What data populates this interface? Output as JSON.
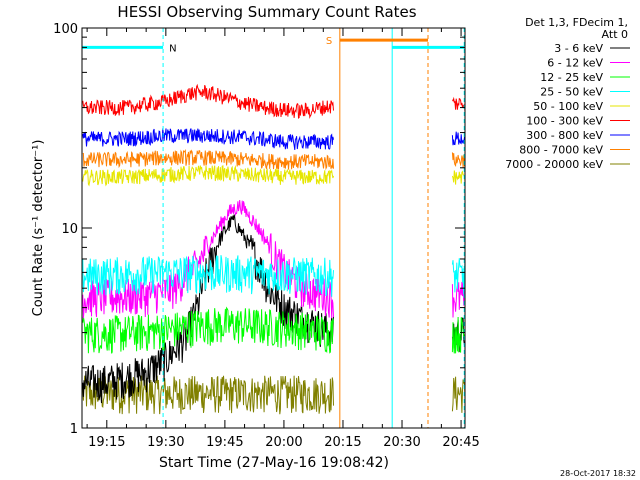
{
  "chart_data": {
    "type": "line",
    "title": "HESSI Observing Summary Count Rates",
    "xlabel": "Start Time (27-May-16 19:08:42)",
    "ylabel": "Count Rate (s⁻¹ detector⁻¹)",
    "ylim": [
      1,
      100
    ],
    "yscale": "log",
    "xlim_minutes": [
      1148.7,
      1246.0
    ],
    "x_ticks": [
      {
        "label": "19:15",
        "minute": 1155
      },
      {
        "label": "19:30",
        "minute": 1170
      },
      {
        "label": "19:45",
        "minute": 1185
      },
      {
        "label": "20:00",
        "minute": 1200
      },
      {
        "label": "20:15",
        "minute": 1215
      },
      {
        "label": "20:30",
        "minute": 1230
      },
      {
        "label": "20:45",
        "minute": 1245
      }
    ],
    "y_ticks": [
      {
        "label": "1",
        "value": 1
      },
      {
        "label": "10",
        "value": 10
      },
      {
        "label": "100",
        "value": 100
      }
    ],
    "legend": {
      "placement": "right",
      "header": [
        "Det 1,3, FDecim 1,",
        "Att 0"
      ],
      "entries": [
        {
          "name": "3 - 6 keV",
          "color": "#000000"
        },
        {
          "name": "6 - 12 keV",
          "color": "#ff00ff"
        },
        {
          "name": "12 - 25 keV",
          "color": "#00ff00"
        },
        {
          "name": "25 - 50 keV",
          "color": "#00ffff"
        },
        {
          "name": "50 - 100 keV",
          "color": "#e6e600"
        },
        {
          "name": "100 - 300 keV",
          "color": "#ff0000"
        },
        {
          "name": "300 - 800 keV",
          "color": "#0000ff"
        },
        {
          "name": "800 - 7000 keV",
          "color": "#ff8000"
        },
        {
          "name": "7000 - 20000 keV",
          "color": "#808000"
        }
      ]
    },
    "series": [
      {
        "name": "7000 - 20000 keV",
        "color": "#808000",
        "segments": [
          {
            "x": [
              1148.9,
              1160,
              1170,
              1180,
              1190,
              1200,
              1210,
              1212.6
            ],
            "y": [
              1.5,
              1.5,
              1.5,
              1.5,
              1.5,
              1.5,
              1.5,
              1.5
            ]
          },
          {
            "x": [
              1242.8,
              1246
            ],
            "y": [
              1.5,
              1.5
            ]
          }
        ]
      },
      {
        "name": "3 - 6 keV",
        "color": "#000000",
        "segments": [
          {
            "x": [
              1148.9,
              1155,
              1165,
              1170,
              1175,
              1178,
              1181,
              1184,
              1187,
              1190,
              1193,
              1196,
              1200,
              1205,
              1212.6
            ],
            "y": [
              1.7,
              1.7,
              1.9,
              2.2,
              2.8,
              4,
              6.5,
              9,
              11,
              9,
              7,
              5,
              4,
              3.5,
              3
            ]
          },
          {
            "x": [
              1242.8,
              1246
            ],
            "y": [
              3,
              3
            ]
          }
        ]
      },
      {
        "name": "12 - 25 keV",
        "color": "#00ff00",
        "segments": [
          {
            "x": [
              1148.9,
              1160,
              1170,
              1180,
              1190,
              1200,
              1212.6
            ],
            "y": [
              3,
              3,
              3.1,
              3.3,
              3.3,
              3.2,
              3
            ]
          },
          {
            "x": [
              1242.8,
              1246
            ],
            "y": [
              3,
              3
            ]
          }
        ]
      },
      {
        "name": "6 - 12 keV",
        "color": "#ff00ff",
        "segments": [
          {
            "x": [
              1148.9,
              1165,
              1172,
              1178,
              1182,
              1186,
              1189,
              1192,
              1195,
              1198,
              1201,
              1205,
              1212.6
            ],
            "y": [
              4.5,
              4.6,
              5,
              6.5,
              9,
              12,
              13,
              11,
              9,
              7,
              5.8,
              5,
              4.5
            ]
          },
          {
            "x": [
              1242.8,
              1246
            ],
            "y": [
              4.5,
              4.5
            ]
          }
        ]
      },
      {
        "name": "25 - 50 keV",
        "color": "#00ffff",
        "segments": [
          {
            "x": [
              1148.9,
              1160,
              1170,
              1180,
              1190,
              1200,
              1212.6
            ],
            "y": [
              5.8,
              5.9,
              6,
              6,
              6,
              5.9,
              5.8
            ]
          },
          {
            "x": [
              1242.8,
              1246
            ],
            "y": [
              5.8,
              5.8
            ]
          }
        ]
      },
      {
        "name": "50 - 100 keV",
        "color": "#e6e600",
        "segments": [
          {
            "x": [
              1148.9,
              1160,
              1170,
              1180,
              1190,
              1200,
              1212.6
            ],
            "y": [
              18,
              18,
              18.5,
              19,
              18.5,
              18,
              18
            ]
          },
          {
            "x": [
              1242.8,
              1246
            ],
            "y": [
              18,
              18
            ]
          }
        ]
      },
      {
        "name": "800 - 7000 keV",
        "color": "#ff8000",
        "segments": [
          {
            "x": [
              1148.9,
              1160,
              1170,
              1180,
              1190,
              1200,
              1212.6
            ],
            "y": [
              22,
              22,
              22.5,
              22.5,
              22,
              21.5,
              21.5
            ]
          },
          {
            "x": [
              1242.8,
              1246
            ],
            "y": [
              22,
              22
            ]
          }
        ]
      },
      {
        "name": "300 - 800 keV",
        "color": "#0000ff",
        "segments": [
          {
            "x": [
              1148.9,
              1160,
              1170,
              1180,
              1190,
              1200,
              1212.6
            ],
            "y": [
              28,
              28,
              29,
              29,
              28.5,
              27,
              27
            ]
          },
          {
            "x": [
              1242.8,
              1246
            ],
            "y": [
              28,
              28
            ]
          }
        ]
      },
      {
        "name": "100 - 300 keV",
        "color": "#ff0000",
        "segments": [
          {
            "x": [
              1148.9,
              1160,
              1170,
              1176,
              1180,
              1185,
              1190,
              1195,
              1200,
              1205,
              1212.6
            ],
            "y": [
              40,
              40,
              43,
              47,
              48,
              45,
              42,
              40,
              39,
              38.5,
              41
            ]
          },
          {
            "x": [
              1242.8,
              1246
            ],
            "y": [
              42,
              42
            ]
          }
        ]
      }
    ],
    "night_periods": [
      {
        "label": "N",
        "start": 1148.7,
        "end": 1169.3,
        "level": 80
      },
      {
        "label": "",
        "start": 1227.5,
        "end": 1245.8,
        "level": 80
      }
    ],
    "saa_period": {
      "label": "S",
      "start": 1214.2,
      "end": 1236.6,
      "level": 87,
      "color": "#ff8000"
    },
    "markers": [
      {
        "minute": 1169.3,
        "color": "#00ffff",
        "style": "dashed"
      },
      {
        "minute": 1214.2,
        "color": "#ff8000",
        "style": "solid"
      },
      {
        "minute": 1227.5,
        "color": "#00ffff",
        "style": "solid"
      },
      {
        "minute": 1236.6,
        "color": "#ff8000",
        "style": "dashed"
      },
      {
        "minute": 1245.8,
        "color": "#00ffff",
        "style": "dashed"
      }
    ]
  },
  "footer": {
    "timestamp": "28-Oct-2017 18:32"
  }
}
